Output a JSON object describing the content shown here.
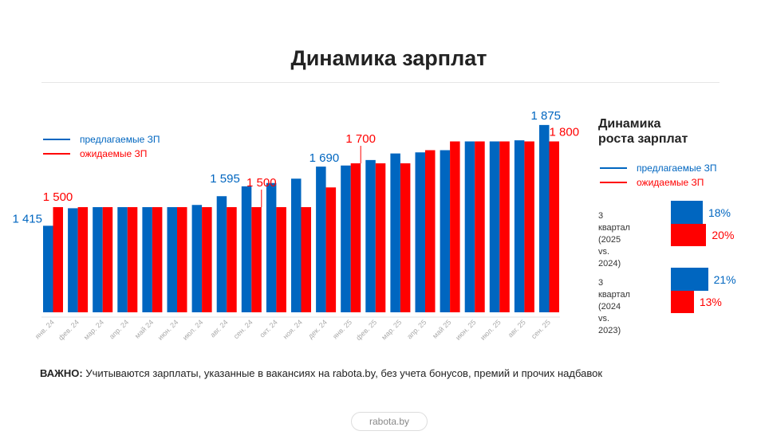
{
  "title": "Динамика зарплат",
  "legend": {
    "offered": "предлагаемые ЗП",
    "expected": "ожидаемые ЗП"
  },
  "colors": {
    "offered": "#0066c0",
    "expected": "#ff0000"
  },
  "chart_data": {
    "type": "bar",
    "categories": [
      "янв. 24",
      "фев. 24",
      "мар. 24",
      "апр. 24",
      "май 24",
      "июн. 24",
      "июл. 24",
      "авг. 24",
      "сен. 24",
      "окт. 24",
      "ноя. 24",
      "дек. 24",
      "янв. 25",
      "фев. 25",
      "мар. 25",
      "апр. 25",
      "май 25",
      "июн. 25",
      "июл. 25",
      "авг. 25",
      "сен. 25"
    ],
    "series": [
      {
        "name": "предлагаемые ЗП",
        "color": "#0066c0",
        "values": [
          1415,
          1495,
          1500,
          1500,
          1500,
          1500,
          1510,
          1550,
          1595,
          1610,
          1630,
          1685,
          1690,
          1715,
          1745,
          1750,
          1760,
          1800,
          1800,
          1805,
          1875
        ]
      },
      {
        "name": "ожидаемые ЗП",
        "color": "#ff0000",
        "values": [
          1500,
          1500,
          1500,
          1500,
          1500,
          1500,
          1500,
          1500,
          1500,
          1500,
          1500,
          1590,
          1700,
          1700,
          1700,
          1760,
          1800,
          1800,
          1800,
          1800,
          1800
        ]
      }
    ],
    "data_labels": [
      {
        "series": 0,
        "index": 0,
        "text": "1 415"
      },
      {
        "series": 1,
        "index": 0,
        "text": "1 500"
      },
      {
        "series": 0,
        "index": 8,
        "text": "1 595"
      },
      {
        "series": 1,
        "index": 8,
        "text": "1 500"
      },
      {
        "series": 0,
        "index": 12,
        "text": "1 690"
      },
      {
        "series": 1,
        "index": 12,
        "text": "1 700"
      },
      {
        "series": 0,
        "index": 20,
        "text": "1 875"
      },
      {
        "series": 1,
        "index": 20,
        "text": "1 800"
      }
    ],
    "ylim": [
      1020,
      1900
    ],
    "grid": false,
    "legend": "top-left"
  },
  "growth": {
    "title_line1": "Динамика",
    "title_line2": "роста зарплат",
    "groups": [
      {
        "label_line1": "3 квартал",
        "label_line2": "(2025 vs. 2024)",
        "offered": 18,
        "expected": 20,
        "offered_text": "18%",
        "expected_text": "20%"
      },
      {
        "label_line1": "3 квартал",
        "label_line2": "(2024 vs. 2023)",
        "offered": 21,
        "expected": 13,
        "offered_text": "21%",
        "expected_text": "13%"
      }
    ]
  },
  "note": {
    "bold": "ВАЖНО:",
    "text": " Учитываются зарплаты, указанные в вакансиях на rabota.by, без учета бонусов, премий и прочих надбавок"
  },
  "footer": "rabota.by"
}
